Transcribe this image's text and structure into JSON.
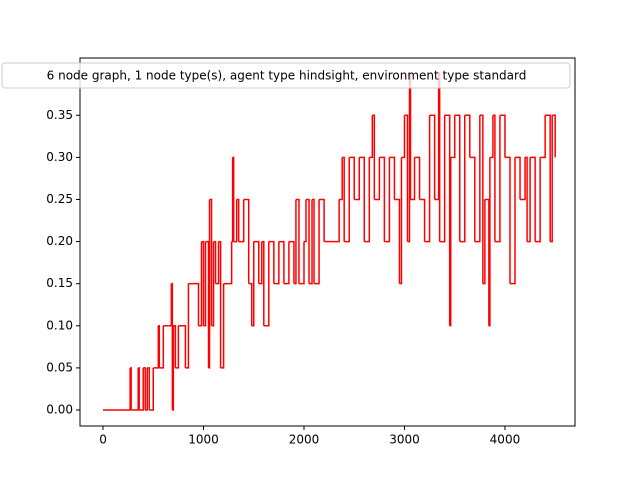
{
  "chart_data": {
    "type": "line",
    "legend": "upper center",
    "xlim": [
      -229,
      4697
    ],
    "ylim": [
      -0.019,
      0.418
    ],
    "xticks": [
      0,
      1000,
      2000,
      3000,
      4000
    ],
    "yticks": [
      {
        "value": 0,
        "label": "0.00"
      },
      0.05,
      {
        "value": 0.1,
        "label": "0.10"
      },
      0.15,
      {
        "value": 0.2,
        "label": "0.20"
      },
      0.25,
      {
        "value": 0.3,
        "label": "0.30"
      },
      0.35
    ],
    "series": [
      {
        "name": "6 node graph, 1 node type(s), agent type hindsight, environment type standard",
        "color": "#ff0000",
        "x": [
          0,
          270,
          280,
          350,
          360,
          400,
          420,
          440,
          460,
          500,
          550,
          560,
          600,
          650,
          680,
          690,
          700,
          720,
          750,
          800,
          820,
          850,
          900,
          950,
          980,
          1000,
          1020,
          1050,
          1060,
          1080,
          1100,
          1120,
          1150,
          1170,
          1200,
          1250,
          1280,
          1290,
          1300,
          1330,
          1350,
          1400,
          1450,
          1480,
          1500,
          1550,
          1580,
          1600,
          1650,
          1700,
          1750,
          1800,
          1850,
          1900,
          1920,
          1950,
          2000,
          2020,
          2050,
          2080,
          2100,
          2150,
          2200,
          2300,
          2350,
          2380,
          2400,
          2450,
          2500,
          2550,
          2600,
          2650,
          2680,
          2700,
          2750,
          2800,
          2850,
          2900,
          2950,
          2970,
          3000,
          3030,
          3050,
          3060,
          3100,
          3150,
          3200,
          3250,
          3300,
          3340,
          3350,
          3400,
          3450,
          3460,
          3500,
          3550,
          3600,
          3650,
          3700,
          3750,
          3780,
          3800,
          3840,
          3850,
          3880,
          3900,
          3950,
          4000,
          4050,
          4100,
          4150,
          4200,
          4220,
          4250,
          4300,
          4350,
          4400,
          4450,
          4470,
          4500
        ],
        "values": [
          0,
          0.05,
          0,
          0.05,
          0,
          0.05,
          0,
          0.05,
          0,
          0.05,
          0.1,
          0.05,
          0.1,
          0.1,
          0.15,
          0,
          0.1,
          0.05,
          0.1,
          0.1,
          0.05,
          0.15,
          0.15,
          0.1,
          0.2,
          0.1,
          0.2,
          0.05,
          0.25,
          0.1,
          0.2,
          0.15,
          0.2,
          0.05,
          0.15,
          0.15,
          0.2,
          0.3,
          0.2,
          0.25,
          0.2,
          0.25,
          0.15,
          0.1,
          0.2,
          0.15,
          0.2,
          0.1,
          0.2,
          0.15,
          0.2,
          0.15,
          0.2,
          0.15,
          0.25,
          0.15,
          0.2,
          0.25,
          0.15,
          0.25,
          0.15,
          0.25,
          0.2,
          0.2,
          0.25,
          0.3,
          0.2,
          0.3,
          0.25,
          0.3,
          0.2,
          0.3,
          0.35,
          0.25,
          0.3,
          0.2,
          0.3,
          0.25,
          0.15,
          0.3,
          0.35,
          0.2,
          0.4,
          0.25,
          0.3,
          0.25,
          0.2,
          0.35,
          0.25,
          0.4,
          0.2,
          0.35,
          0.1,
          0.3,
          0.35,
          0.2,
          0.35,
          0.3,
          0.2,
          0.35,
          0.15,
          0.25,
          0.1,
          0.3,
          0.35,
          0.2,
          0.35,
          0.3,
          0.15,
          0.3,
          0.25,
          0.3,
          0.2,
          0.3,
          0.2,
          0.3,
          0.35,
          0.2,
          0.35,
          0.3
        ]
      }
    ]
  }
}
